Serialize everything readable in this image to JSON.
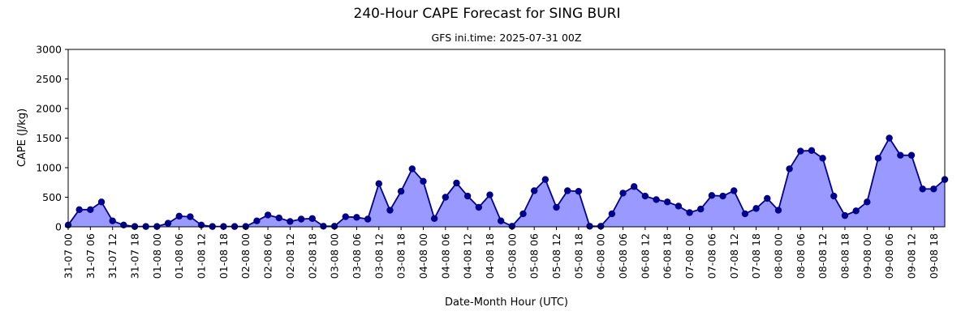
{
  "chart_data": {
    "type": "area",
    "title": "240-Hour CAPE Forecast for SING BURI",
    "subtitle": "GFS ini.time: 2025-07-31 00Z",
    "xlabel": "Date-Month Hour (UTC)",
    "ylabel": "CAPE (J/kg)",
    "ylim": [
      0,
      3000
    ],
    "y_ticks": [
      0,
      500,
      1000,
      1500,
      2000,
      2500,
      3000
    ],
    "x_step_hours": 3,
    "x_tick_every": 2,
    "x": [
      "31-07 00",
      "31-07 03",
      "31-07 06",
      "31-07 09",
      "31-07 12",
      "31-07 15",
      "31-07 18",
      "31-07 21",
      "01-08 00",
      "01-08 03",
      "01-08 06",
      "01-08 09",
      "01-08 12",
      "01-08 15",
      "01-08 18",
      "01-08 21",
      "02-08 00",
      "02-08 03",
      "02-08 06",
      "02-08 09",
      "02-08 12",
      "02-08 15",
      "02-08 18",
      "02-08 21",
      "03-08 00",
      "03-08 03",
      "03-08 06",
      "03-08 09",
      "03-08 12",
      "03-08 15",
      "03-08 18",
      "03-08 21",
      "04-08 00",
      "04-08 03",
      "04-08 06",
      "04-08 09",
      "04-08 12",
      "04-08 15",
      "04-08 18",
      "04-08 21",
      "05-08 00",
      "05-08 03",
      "05-08 06",
      "05-08 09",
      "05-08 12",
      "05-08 15",
      "05-08 18",
      "05-08 21",
      "06-08 00",
      "06-08 03",
      "06-08 06",
      "06-08 09",
      "06-08 12",
      "06-08 15",
      "06-08 18",
      "06-08 21",
      "07-08 00",
      "07-08 03",
      "07-08 06",
      "07-08 09",
      "07-08 12",
      "07-08 15",
      "07-08 18",
      "07-08 21",
      "08-08 00",
      "08-08 03",
      "08-08 06",
      "08-08 09",
      "08-08 12",
      "08-08 15",
      "08-08 18",
      "08-08 21",
      "09-08 00",
      "09-08 03",
      "09-08 06",
      "09-08 09",
      "09-08 12",
      "09-08 15",
      "09-08 18",
      "09-08 21"
    ],
    "series": [
      {
        "values": [
          30,
          290,
          290,
          420,
          100,
          30,
          5,
          5,
          5,
          60,
          180,
          170,
          30,
          5,
          5,
          5,
          5,
          100,
          200,
          150,
          90,
          130,
          140,
          10,
          10,
          170,
          160,
          130,
          730,
          280,
          600,
          980,
          770,
          140,
          500,
          740,
          520,
          330,
          540,
          100,
          10,
          220,
          610,
          800,
          330,
          610,
          600,
          10,
          10,
          220,
          570,
          680,
          520,
          460,
          420,
          350,
          240,
          300,
          530,
          520,
          610,
          220,
          310,
          480,
          280,
          980,
          1280,
          1290,
          1160,
          520,
          190,
          270,
          420,
          1160,
          1500,
          1210,
          1210,
          640,
          640,
          800
        ],
        "line_color": "#00008b",
        "marker_color": "#00008b",
        "fill_color": "#9999ff"
      }
    ],
    "grid": false,
    "legend": "none"
  }
}
